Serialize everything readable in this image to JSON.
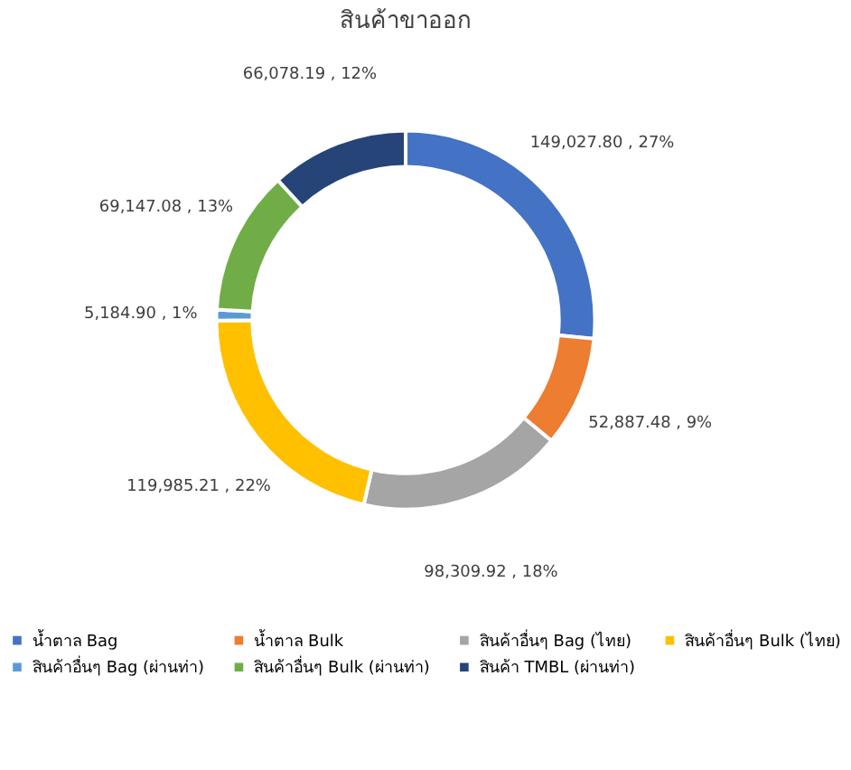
{
  "chart_data": {
    "type": "donut",
    "title": "สินค้าขาออก",
    "categories": [
      "น้ำตาล Bag",
      "น้ำตาล Bulk",
      "สินค้าอื่นๆ Bag (ไทย)",
      "สินค้าอื่นๆ Bulk (ไทย)",
      "สินค้าอื่นๆ Bag (ผ่านท่า)",
      "สินค้าอื่นๆ Bulk (ผ่านท่า)",
      "สินค้า TMBL (ผ่านท่า)"
    ],
    "values": [
      149027.8,
      52887.48,
      98309.92,
      119985.21,
      5184.9,
      69147.08,
      66078.19
    ],
    "value_labels": [
      "149,027.80 , 27%",
      "52,887.48 , 9%",
      "98,309.92 , 18%",
      "119,985.21 , 22%",
      "5,184.90 , 1%",
      "69,147.08 , 13%",
      "66,078.19 , 12%"
    ],
    "colors": [
      "#4472c4",
      "#ed7d31",
      "#a5a5a5",
      "#ffc000",
      "#5b9bd5",
      "#70ad47",
      "#264478"
    ],
    "legend": "bottom"
  }
}
